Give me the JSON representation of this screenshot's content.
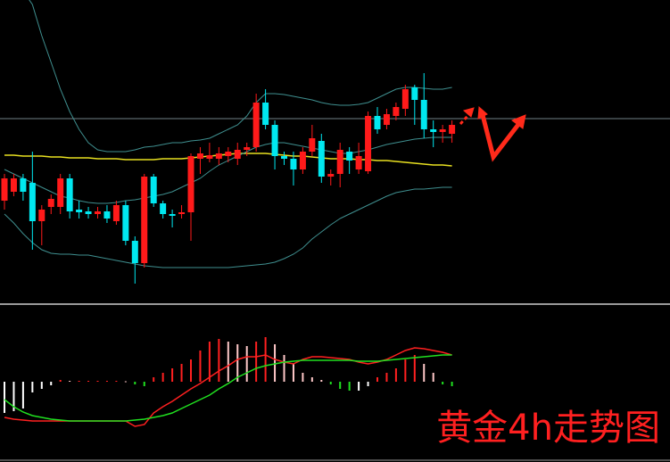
{
  "chart_data": [
    {
      "type": "candlestick",
      "open": [
        115,
        125,
        140,
        135,
        92,
        108,
        108,
        140,
        105,
        103,
        100,
        103,
        92,
        110,
        70,
        45,
        142,
        112,
        100,
        100,
        102,
        162,
        162,
        162,
        165,
        162,
        172,
        175,
        225,
        200,
        165,
        162,
        150,
        170,
        182,
        142,
        145,
        170,
        150,
        148,
        210,
        200,
        210,
        218,
        242,
        228,
        195,
        192,
        190
      ],
      "high": [
        145,
        145,
        145,
        170,
        110,
        122,
        145,
        145,
        115,
        108,
        108,
        110,
        115,
        115,
        75,
        145,
        145,
        115,
        105,
        110,
        168,
        175,
        180,
        175,
        175,
        180,
        180,
        235,
        240,
        205,
        170,
        170,
        175,
        200,
        190,
        150,
        180,
        175,
        180,
        215,
        220,
        218,
        225,
        245,
        245,
        258,
        205,
        200,
        205
      ],
      "low": [
        105,
        120,
        115,
        60,
        65,
        100,
        100,
        95,
        95,
        95,
        95,
        90,
        88,
        65,
        22,
        40,
        108,
        95,
        85,
        95,
        70,
        145,
        158,
        155,
        158,
        155,
        165,
        170,
        195,
        150,
        155,
        132,
        145,
        165,
        135,
        132,
        130,
        145,
        145,
        145,
        190,
        195,
        205,
        210,
        200,
        185,
        175,
        180,
        180
      ],
      "close": [
        140,
        140,
        125,
        92,
        105,
        117,
        140,
        103,
        102,
        100,
        103,
        95,
        110,
        70,
        45,
        142,
        112,
        100,
        98,
        102,
        165,
        168,
        166,
        168,
        170,
        172,
        175,
        225,
        200,
        165,
        162,
        150,
        170,
        185,
        142,
        145,
        172,
        160,
        165,
        210,
        195,
        212,
        220,
        240,
        228,
        195,
        192,
        195,
        200
      ],
      "up_color": "#ff1a1a",
      "down_color": "#00e8f0",
      "ylim": [
        0,
        340
      ],
      "hline": 207,
      "hline_color": "#6f7f86",
      "overlays": [
        {
          "color": "#e8e020",
          "values": [
            166,
            166,
            165,
            165,
            165,
            164,
            164,
            163,
            163,
            163,
            162,
            162,
            162,
            161,
            161,
            161,
            161,
            162,
            162,
            162,
            163,
            164,
            165,
            166,
            167,
            168,
            168,
            168,
            168,
            167,
            166,
            165,
            165,
            164,
            163,
            162,
            162,
            162,
            161,
            161,
            160,
            160,
            159,
            158,
            157,
            156,
            155,
            155,
            154
          ]
        },
        {
          "color": "#3f8f8f",
          "values": [
            380,
            365,
            350,
            335,
            300,
            270,
            240,
            215,
            195,
            180,
            172,
            170,
            170,
            170,
            172,
            175,
            176,
            178,
            180,
            180,
            182,
            183,
            185,
            190,
            195,
            200,
            210,
            225,
            235,
            235,
            234,
            232,
            230,
            228,
            225,
            223,
            222,
            222,
            223,
            225,
            230,
            235,
            240,
            242,
            242,
            241,
            240,
            240,
            242
          ]
        },
        {
          "color": "#3f8f8f",
          "values": [
            150,
            145,
            140,
            135,
            130,
            125,
            120,
            118,
            115,
            113,
            112,
            112,
            113,
            115,
            116,
            118,
            120,
            122,
            125,
            130,
            135,
            140,
            148,
            155,
            160,
            165,
            170,
            175,
            178,
            180,
            180,
            178,
            176,
            174,
            172,
            170,
            168,
            168,
            170,
            172,
            175,
            178,
            180,
            182,
            184,
            185,
            186,
            186,
            186
          ]
        },
        {
          "color": "#3f8f8f",
          "values": [
            100,
            90,
            78,
            68,
            60,
            56,
            55,
            55,
            54,
            54,
            52,
            50,
            48,
            46,
            44,
            42,
            41,
            40,
            40,
            40,
            40,
            40,
            40,
            40,
            40,
            41,
            42,
            43,
            44,
            46,
            50,
            55,
            62,
            72,
            80,
            88,
            95,
            100,
            105,
            110,
            115,
            120,
            124,
            126,
            128,
            128,
            129,
            130,
            130
          ]
        }
      ]
    },
    {
      "type": "macd",
      "title": "黄金4h走势图",
      "title_color": "#ff2020",
      "ylim": [
        -90,
        83
      ],
      "histogram": [
        -35,
        -33,
        -30,
        -12,
        -8,
        -4,
        2,
        1,
        1,
        1,
        1,
        1,
        1,
        0.5,
        -3,
        -5,
        5,
        10,
        15,
        20,
        25,
        35,
        45,
        48,
        45,
        42,
        40,
        45,
        50,
        42,
        30,
        20,
        10,
        5,
        2,
        -3,
        -8,
        -10,
        -10,
        -5,
        5,
        10,
        15,
        25,
        30,
        20,
        10,
        -3,
        -5
      ],
      "rise_up_color": "#ff2020",
      "fall_up_color": "#ffc8c8",
      "fall_down_color": "#20e020",
      "rise_down_color": "#ffffff",
      "lines": [
        {
          "color": "#ff2020",
          "values": [
            -40,
            -42,
            -43,
            -44,
            -44,
            -44,
            -44,
            -44,
            -44,
            -44,
            -44,
            -44,
            -44,
            -44,
            -50,
            -48,
            -35,
            -28,
            -22,
            -15,
            -8,
            -2,
            5,
            12,
            18,
            25,
            28,
            28,
            30,
            25,
            22,
            20,
            25,
            28,
            28,
            27,
            26,
            25,
            22,
            20,
            22,
            25,
            30,
            35,
            38,
            37,
            35,
            33,
            30
          ]
        },
        {
          "color": "#20e020",
          "values": [
            -20,
            -28,
            -34,
            -38,
            -40,
            -42,
            -43,
            -44,
            -44,
            -44,
            -44,
            -44,
            -44,
            -44,
            -43,
            -42,
            -40,
            -38,
            -35,
            -30,
            -25,
            -20,
            -15,
            -8,
            -2,
            5,
            10,
            15,
            18,
            20,
            22,
            23,
            24,
            24,
            24,
            24,
            24,
            24,
            23,
            23,
            23,
            24,
            25,
            26,
            27,
            28,
            29,
            30,
            30
          ]
        }
      ]
    }
  ]
}
